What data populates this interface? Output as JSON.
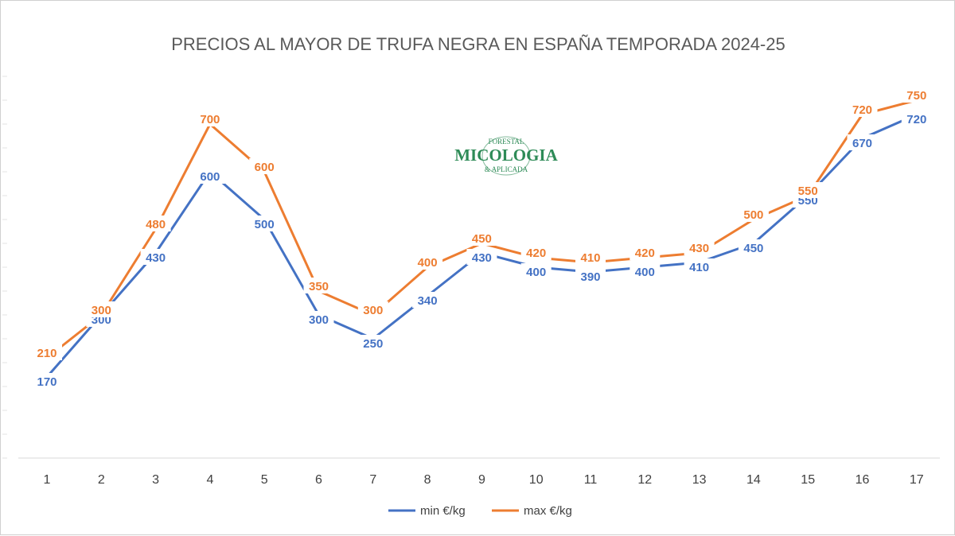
{
  "chart_data": {
    "type": "line",
    "title": "PRECIOS AL MAYOR DE TRUFA NEGRA EN ESPAÑA TEMPORADA 2024-25",
    "categories": [
      "1",
      "2",
      "3",
      "4",
      "5",
      "6",
      "7",
      "8",
      "9",
      "10",
      "11",
      "12",
      "13",
      "14",
      "15",
      "16",
      "17"
    ],
    "series": [
      {
        "name": "min €/kg",
        "color": "#4472c4",
        "values": [
          170,
          300,
          430,
          600,
          500,
          300,
          250,
          340,
          430,
          400,
          390,
          400,
          410,
          450,
          550,
          670,
          720
        ]
      },
      {
        "name": "max €/kg",
        "color": "#ed7d31",
        "values": [
          210,
          300,
          480,
          700,
          600,
          350,
          300,
          400,
          450,
          420,
          410,
          420,
          430,
          500,
          550,
          720,
          750
        ]
      }
    ],
    "ylim": [
      0,
      800
    ],
    "grid": false,
    "data_labels": true,
    "legend_position": "bottom"
  },
  "logo": {
    "name": "micologia-logo",
    "text_main": "MICOLOGIA",
    "text_top": "FORESTAL",
    "text_bottom": "& APLICADA",
    "color": "#2e8b57"
  }
}
